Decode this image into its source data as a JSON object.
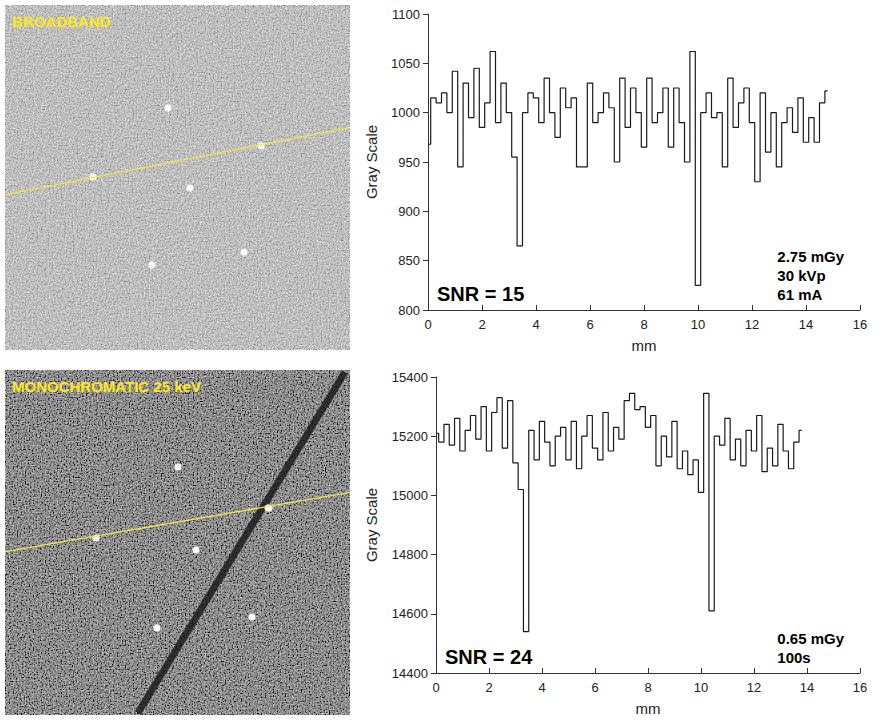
{
  "images": [
    {
      "label": "BROADBAND"
    },
    {
      "label": "MONOCHROMATIC 25 keV"
    }
  ],
  "chart_data": [
    {
      "type": "line",
      "line_style": "step",
      "color": "#1a1a1a",
      "grid": false,
      "x_label": "mm",
      "y_label": "Gray Scale",
      "xlim": [
        0,
        16
      ],
      "xticks": [
        0,
        2,
        4,
        6,
        8,
        10,
        12,
        14,
        16
      ],
      "ylim": [
        800,
        1100
      ],
      "yticks": [
        800,
        850,
        900,
        950,
        1000,
        1050,
        1100
      ],
      "annotations": [
        "SNR = 15",
        "2.75 mGy",
        "30 kVp",
        "61 mA"
      ],
      "x": [
        0,
        0.2,
        0.4,
        0.6,
        0.8,
        1.0,
        1.2,
        1.4,
        1.6,
        1.8,
        2.0,
        2.2,
        2.4,
        2.6,
        2.8,
        3.0,
        3.2,
        3.4,
        3.6,
        3.8,
        4.0,
        4.2,
        4.4,
        4.6,
        4.8,
        5.0,
        5.2,
        5.4,
        5.6,
        5.8,
        6.0,
        6.2,
        6.4,
        6.6,
        6.8,
        7.0,
        7.2,
        7.4,
        7.6,
        7.8,
        8.0,
        8.2,
        8.4,
        8.6,
        8.8,
        9.0,
        9.2,
        9.4,
        9.6,
        9.8,
        10.0,
        10.2,
        10.4,
        10.6,
        10.8,
        11.0,
        11.2,
        11.4,
        11.6,
        11.8,
        12.0,
        12.2,
        12.4,
        12.6,
        12.8,
        13.0,
        13.2,
        13.4,
        13.6,
        13.8,
        14.0,
        14.2,
        14.4,
        14.6,
        14.8
      ],
      "values": [
        968,
        1015,
        1010,
        1020,
        1000,
        1042,
        945,
        1030,
        995,
        1045,
        985,
        1010,
        1062,
        990,
        1030,
        1000,
        955,
        865,
        1000,
        1020,
        1015,
        990,
        1035,
        1000,
        975,
        1025,
        1005,
        1015,
        945,
        945,
        1030,
        990,
        1000,
        1020,
        1005,
        950,
        1035,
        985,
        1025,
        1000,
        965,
        1035,
        990,
        1000,
        1025,
        965,
        1025,
        990,
        950,
        1062,
        825,
        1000,
        1020,
        995,
        1000,
        945,
        1035,
        985,
        1010,
        1025,
        990,
        930,
        1020,
        960,
        1000,
        945,
        990,
        1005,
        980,
        1015,
        970,
        995,
        970,
        1010,
        1022
      ]
    },
    {
      "type": "line",
      "line_style": "step",
      "color": "#1a1a1a",
      "grid": false,
      "x_label": "mm",
      "y_label": "Gray Scale",
      "xlim": [
        0,
        16
      ],
      "xticks": [
        0,
        2,
        4,
        6,
        8,
        10,
        12,
        14,
        16
      ],
      "ylim": [
        14400,
        15400
      ],
      "yticks": [
        14400,
        14600,
        14800,
        15000,
        15200,
        15400
      ],
      "annotations": [
        "SNR = 24",
        "0.65 mGy",
        "100s"
      ],
      "x": [
        0,
        0.2,
        0.4,
        0.6,
        0.8,
        1.0,
        1.2,
        1.4,
        1.6,
        1.8,
        2.0,
        2.2,
        2.4,
        2.6,
        2.8,
        3.0,
        3.2,
        3.4,
        3.6,
        3.8,
        4.0,
        4.2,
        4.4,
        4.6,
        4.8,
        5.0,
        5.2,
        5.4,
        5.6,
        5.8,
        6.0,
        6.2,
        6.4,
        6.6,
        6.8,
        7.0,
        7.2,
        7.4,
        7.6,
        7.8,
        8.0,
        8.2,
        8.4,
        8.6,
        8.8,
        9.0,
        9.2,
        9.4,
        9.6,
        9.8,
        10.0,
        10.2,
        10.4,
        10.6,
        10.8,
        11.0,
        11.2,
        11.4,
        11.6,
        11.8,
        12.0,
        12.2,
        12.4,
        12.6,
        12.8,
        13.0,
        13.2,
        13.4,
        13.6,
        13.8
      ],
      "values": [
        15210,
        15180,
        15240,
        15170,
        15260,
        15150,
        15220,
        15270,
        15190,
        15300,
        15150,
        15280,
        15330,
        15160,
        15320,
        15110,
        15020,
        14540,
        15220,
        15120,
        15250,
        15180,
        15100,
        15200,
        15230,
        15120,
        15250,
        15090,
        15200,
        15270,
        15160,
        15120,
        15280,
        15150,
        15230,
        15190,
        15320,
        15345,
        15290,
        15300,
        15230,
        15270,
        15100,
        15200,
        15130,
        15250,
        15090,
        15150,
        15070,
        15120,
        15010,
        15345,
        14610,
        15200,
        15170,
        15260,
        15120,
        15190,
        15100,
        15220,
        15150,
        15270,
        15080,
        15160,
        15100,
        15240,
        15150,
        15090,
        15180,
        15220
      ]
    }
  ]
}
